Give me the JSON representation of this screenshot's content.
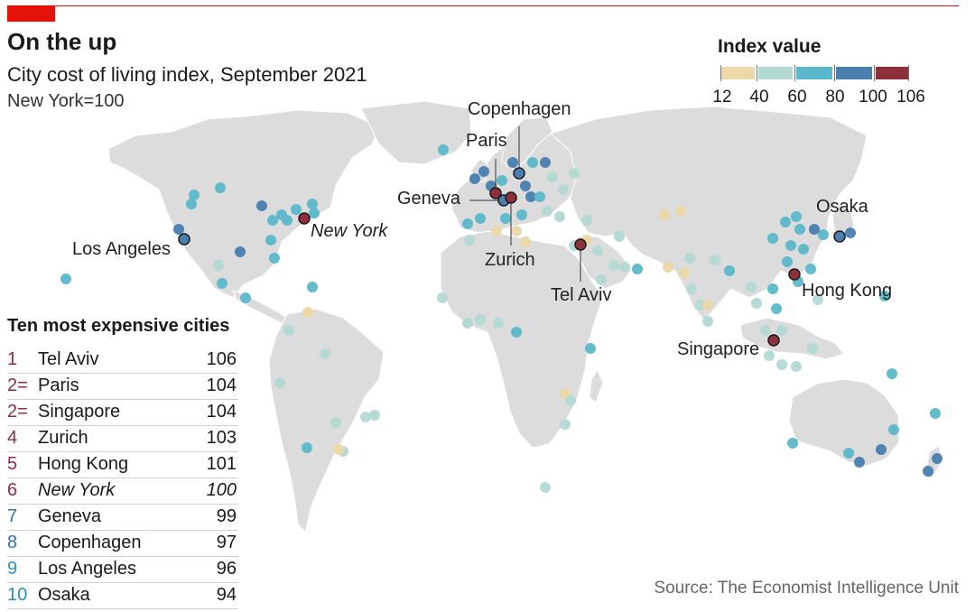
{
  "header": {
    "title": "On the up",
    "subtitle": "City cost of living index, September 2021",
    "note": "New York=100"
  },
  "legend": {
    "title": "Index value",
    "labels": [
      "12",
      "40",
      "60",
      "80",
      "100",
      "106"
    ],
    "colors": [
      "#ecd8a8",
      "#b3d9d3",
      "#5bb8ca",
      "#4a7fb0",
      "#8e2f3c"
    ]
  },
  "colors": {
    "accent_red": "#e3120b",
    "land": "#dcdcdc",
    "rank_top": "#8e2f3c",
    "rank_mid": "#2f72a8",
    "rank_low": "#2b8fb4"
  },
  "highlighted_cities": [
    {
      "name": "Copenhagen",
      "italic": false
    },
    {
      "name": "Paris",
      "italic": false
    },
    {
      "name": "Geneva",
      "italic": false
    },
    {
      "name": "Zurich",
      "italic": false
    },
    {
      "name": "New York",
      "italic": true
    },
    {
      "name": "Los Angeles",
      "italic": false
    },
    {
      "name": "Tel Aviv",
      "italic": false
    },
    {
      "name": "Osaka",
      "italic": false
    },
    {
      "name": "Hong Kong",
      "italic": false
    },
    {
      "name": "Singapore",
      "italic": false
    }
  ],
  "ranking": {
    "title": "Ten most expensive cities",
    "rows": [
      {
        "rank": "1",
        "city": "Tel Aviv",
        "value": "106",
        "italic": false
      },
      {
        "rank": "2=",
        "city": "Paris",
        "value": "104",
        "italic": false
      },
      {
        "rank": "2=",
        "city": "Singapore",
        "value": "104",
        "italic": false
      },
      {
        "rank": "4",
        "city": "Zurich",
        "value": "103",
        "italic": false
      },
      {
        "rank": "5",
        "city": "Hong Kong",
        "value": "101",
        "italic": false
      },
      {
        "rank": "6",
        "city": "New York",
        "value": "100",
        "italic": true
      },
      {
        "rank": "7",
        "city": "Geneva",
        "value": "99",
        "italic": false
      },
      {
        "rank": "8",
        "city": "Copenhagen",
        "value": "97",
        "italic": false
      },
      {
        "rank": "9",
        "city": "Los Angeles",
        "value": "96",
        "italic": false
      },
      {
        "rank": "10",
        "city": "Osaka",
        "value": "94",
        "italic": false
      }
    ]
  },
  "source": "Source: The Economist Intelligence Unit"
}
